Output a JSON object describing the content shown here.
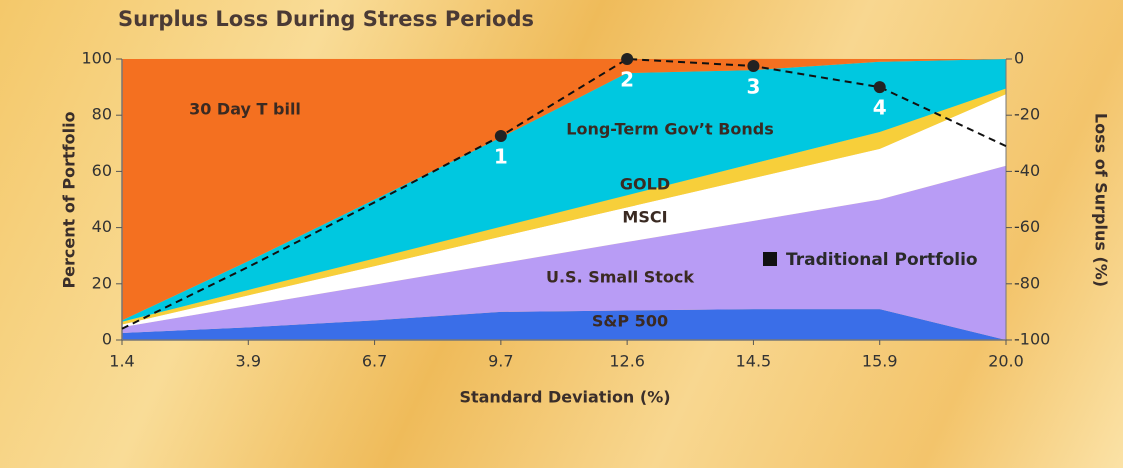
{
  "chart_data": {
    "type": "stacked_area",
    "title": "Surplus Loss During Stress Periods",
    "xlabel": "Standard Deviation (%)",
    "ylabel": "Percent of Portfolio",
    "y2label": "Loss of Surplus (%)",
    "categories": [
      "1.4",
      "3.9",
      "6.7",
      "9.7",
      "12.6",
      "14.5",
      "15.9",
      "20.0"
    ],
    "ylim": [
      0,
      100
    ],
    "yticks": [
      0,
      20,
      40,
      60,
      80,
      100
    ],
    "y2lim": [
      -100,
      0
    ],
    "y2ticks": [
      0,
      -20,
      -40,
      -60,
      -80,
      -100
    ],
    "series": [
      {
        "name": "S&P 500",
        "color": "#3a6ee8",
        "values": [
          2.5,
          4.5,
          7,
          10,
          10.5,
          11,
          11,
          0
        ]
      },
      {
        "name": "U.S. Small Stock",
        "color": "#b89cf5",
        "values": [
          2.1,
          7.7,
          12.7,
          17.3,
          24.4,
          31.4,
          39,
          62
        ]
      },
      {
        "name": "MSCI",
        "color": "#ffffff",
        "values": [
          0.9,
          3.7,
          6.6,
          9.5,
          12.3,
          15.2,
          18,
          25.5
        ]
      },
      {
        "name": "GOLD",
        "color": "#f7cf3a",
        "values": [
          1,
          1.9,
          2.7,
          3.5,
          4.3,
          5.2,
          6,
          2
        ]
      },
      {
        "name": "Long-Term Gov’t Bonds",
        "color": "#00c8e0",
        "values": [
          0.5,
          10.25,
          21,
          31.75,
          43.5,
          33.25,
          25,
          10.5
        ]
      },
      {
        "name": "30 Day T bill",
        "color": "#f47020",
        "values": [
          93,
          72,
          50,
          28,
          5,
          4,
          1,
          0
        ]
      },
      {
        "name": "Traditional Portfolio",
        "type": "line",
        "axis": "y2",
        "color": "#111111",
        "dashed": true,
        "values": [
          -96,
          -74,
          -51,
          -27.4,
          0,
          -2.5,
          -10,
          -31
        ],
        "point_labels": [
          null,
          null,
          null,
          "1",
          "2",
          "3",
          "4",
          null
        ]
      }
    ]
  }
}
